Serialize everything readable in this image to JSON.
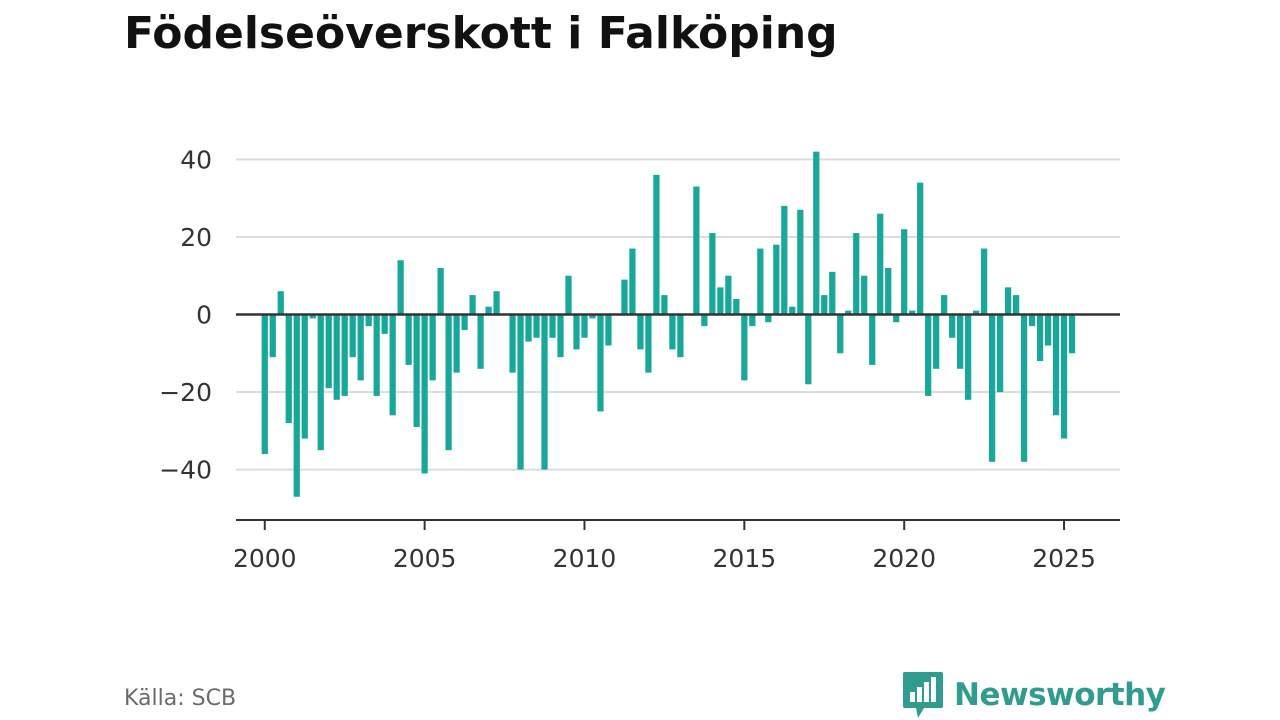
{
  "title": "Födelseöverskott i Falköping",
  "source": "Källa: SCB",
  "brand": {
    "name": "Newsworthy",
    "icon": "newsworthy-logo-icon"
  },
  "colors": {
    "bar": "#18a79b",
    "brand": "#2f9c8e",
    "grid": "#dcdcdc",
    "axis": "#333333"
  },
  "chart_data": {
    "type": "bar",
    "title": "Födelseöverskott i Falköping",
    "xlabel": "",
    "ylabel": "",
    "x_ticks": [
      2000,
      2005,
      2010,
      2015,
      2020,
      2025
    ],
    "y_ticks": [
      40,
      20,
      0,
      -20,
      -40
    ],
    "y_tick_labels": [
      "40",
      "20",
      "0",
      "−20",
      "−40"
    ],
    "xlim": [
      1999.1,
      2026.75
    ],
    "ylim": [
      -53,
      45
    ],
    "grid": true,
    "legend": "none",
    "series": [
      {
        "points": [
          [
            "2000Q1",
            -36
          ],
          [
            "2000Q2",
            -11
          ],
          [
            "2000Q3",
            6
          ],
          [
            "2000Q4",
            -28
          ],
          [
            "2001Q1",
            -47
          ],
          [
            "2001Q2",
            -32
          ],
          [
            "2001Q3",
            -1
          ],
          [
            "2001Q4",
            -35
          ],
          [
            "2002Q1",
            -19
          ],
          [
            "2002Q2",
            -22
          ],
          [
            "2002Q3",
            -21
          ],
          [
            "2002Q4",
            -11
          ],
          [
            "2003Q1",
            -17
          ],
          [
            "2003Q2",
            -3
          ],
          [
            "2003Q3",
            -21
          ],
          [
            "2003Q4",
            -5
          ],
          [
            "2004Q1",
            -26
          ],
          [
            "2004Q2",
            14
          ],
          [
            "2004Q3",
            -13
          ],
          [
            "2004Q4",
            -29
          ],
          [
            "2005Q1",
            -41
          ],
          [
            "2005Q2",
            -17
          ],
          [
            "2005Q3",
            12
          ],
          [
            "2005Q4",
            -35
          ],
          [
            "2006Q1",
            -15
          ],
          [
            "2006Q2",
            -4
          ],
          [
            "2006Q3",
            5
          ],
          [
            "2006Q4",
            -14
          ],
          [
            "2007Q1",
            2
          ],
          [
            "2007Q2",
            6
          ],
          [
            "2007Q3",
            0
          ],
          [
            "2007Q4",
            -15
          ],
          [
            "2008Q1",
            -40
          ],
          [
            "2008Q2",
            -7
          ],
          [
            "2008Q3",
            -6
          ],
          [
            "2008Q4",
            -40
          ],
          [
            "2009Q1",
            -6
          ],
          [
            "2009Q2",
            -11
          ],
          [
            "2009Q3",
            10
          ],
          [
            "2009Q4",
            -9
          ],
          [
            "2010Q1",
            -6
          ],
          [
            "2010Q2",
            -1
          ],
          [
            "2010Q3",
            -25
          ],
          [
            "2010Q4",
            -8
          ],
          [
            "2011Q1",
            0
          ],
          [
            "2011Q2",
            9
          ],
          [
            "2011Q3",
            17
          ],
          [
            "2011Q4",
            -9
          ],
          [
            "2012Q1",
            -15
          ],
          [
            "2012Q2",
            36
          ],
          [
            "2012Q3",
            5
          ],
          [
            "2012Q4",
            -9
          ],
          [
            "2013Q1",
            -11
          ],
          [
            "2013Q2",
            0
          ],
          [
            "2013Q3",
            33
          ],
          [
            "2013Q4",
            -3
          ],
          [
            "2014Q1",
            21
          ],
          [
            "2014Q2",
            7
          ],
          [
            "2014Q3",
            10
          ],
          [
            "2014Q4",
            4
          ],
          [
            "2015Q1",
            -17
          ],
          [
            "2015Q2",
            -3
          ],
          [
            "2015Q3",
            17
          ],
          [
            "2015Q4",
            -2
          ],
          [
            "2016Q1",
            18
          ],
          [
            "2016Q2",
            28
          ],
          [
            "2016Q3",
            2
          ],
          [
            "2016Q4",
            27
          ],
          [
            "2017Q1",
            -18
          ],
          [
            "2017Q2",
            42
          ],
          [
            "2017Q3",
            5
          ],
          [
            "2017Q4",
            11
          ],
          [
            "2018Q1",
            -10
          ],
          [
            "2018Q2",
            1
          ],
          [
            "2018Q3",
            21
          ],
          [
            "2018Q4",
            10
          ],
          [
            "2019Q1",
            -13
          ],
          [
            "2019Q2",
            26
          ],
          [
            "2019Q3",
            12
          ],
          [
            "2019Q4",
            -2
          ],
          [
            "2020Q1",
            22
          ],
          [
            "2020Q2",
            1
          ],
          [
            "2020Q3",
            34
          ],
          [
            "2020Q4",
            -21
          ],
          [
            "2021Q1",
            -14
          ],
          [
            "2021Q2",
            5
          ],
          [
            "2021Q3",
            -6
          ],
          [
            "2021Q4",
            -14
          ],
          [
            "2022Q1",
            -22
          ],
          [
            "2022Q2",
            1
          ],
          [
            "2022Q3",
            17
          ],
          [
            "2022Q4",
            -38
          ],
          [
            "2023Q1",
            -20
          ],
          [
            "2023Q2",
            7
          ],
          [
            "2023Q3",
            5
          ],
          [
            "2023Q4",
            -38
          ],
          [
            "2024Q1",
            -3
          ],
          [
            "2024Q2",
            -12
          ],
          [
            "2024Q3",
            -8
          ],
          [
            "2024Q4",
            -26
          ],
          [
            "2025Q1",
            -32
          ],
          [
            "2025Q2",
            -10
          ]
        ]
      }
    ]
  }
}
